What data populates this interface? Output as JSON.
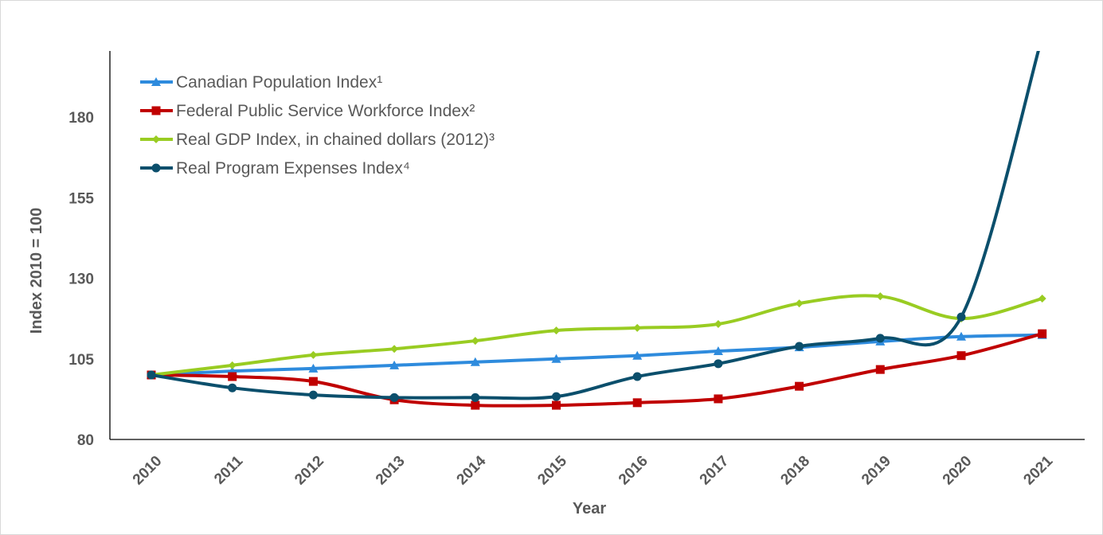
{
  "chart_data": {
    "type": "line",
    "title": "",
    "xlabel": "Year",
    "ylabel": "Index 2010 = 100",
    "ylim": [
      80,
      200
    ],
    "yticks": [
      80,
      105,
      130,
      155,
      180
    ],
    "x": [
      "2010",
      "2011",
      "2012",
      "2013",
      "2014",
      "2015",
      "2016",
      "2017",
      "2018",
      "2019",
      "2020",
      "2021"
    ],
    "grid": false,
    "legend_position": "top-left",
    "smooth": true,
    "series": [
      {
        "name": "Canadian Population Index¹",
        "color": "#2e8bdd",
        "marker": "triangle",
        "values": [
          100,
          101.2,
          102,
          103,
          104,
          105,
          106,
          107.4,
          108.6,
          110.4,
          111.9,
          112.4
        ]
      },
      {
        "name": "Federal Public Service Workforce Index²",
        "color": "#c00000",
        "marker": "square",
        "values": [
          100,
          99.5,
          98,
          92.3,
          90.6,
          90.6,
          91.4,
          92.6,
          96.5,
          101.7,
          106,
          112.8
        ]
      },
      {
        "name": "Real GDP Index, in chained dollars (2012)³",
        "color": "#99cc22",
        "marker": "diamond",
        "values": [
          100,
          103,
          106.2,
          108.1,
          110.6,
          113.8,
          114.6,
          115.8,
          122.2,
          124.4,
          117.5,
          123.7
        ]
      },
      {
        "name": "Real Program Expenses Index⁴",
        "color": "#0b4f6c",
        "marker": "circle",
        "values": [
          100,
          96,
          93.8,
          93,
          93,
          93.3,
          99.5,
          103.5,
          108.9,
          111.4,
          118,
          205
        ]
      }
    ]
  }
}
